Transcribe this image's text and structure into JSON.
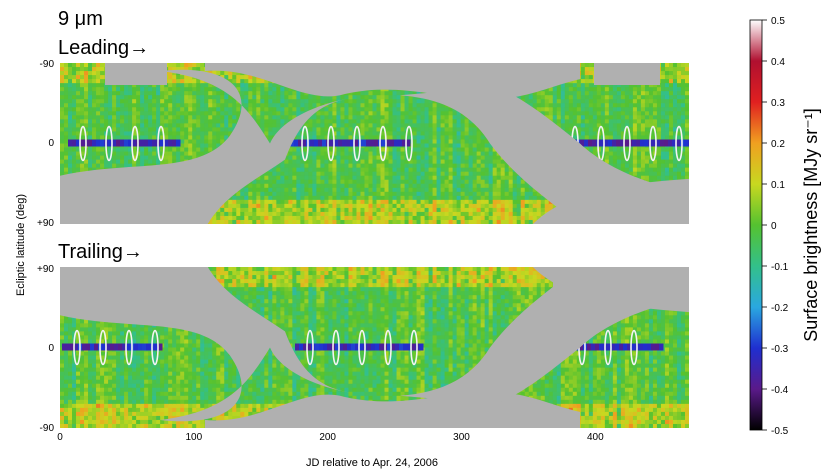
{
  "chart_data": {
    "type": "heatmap",
    "wavelength_label": "9 μm",
    "xlabel": "JD relative to Apr. 24, 2006",
    "ylabel": "Ecliptic latitude (deg)",
    "x_ticks": [
      "0",
      "100",
      "200",
      "300",
      "400"
    ],
    "xlim": [
      0,
      470
    ],
    "colorbar": {
      "label": "Surface brightness [MJy sr⁻¹]",
      "ticks": [
        "0.5",
        "0.4",
        "0.3",
        "0.2",
        "0.1",
        "0",
        "-0.1",
        "-0.2",
        "-0.3",
        "-0.4",
        "-0.5"
      ],
      "range": [
        -0.5,
        0.5
      ],
      "stops": [
        "#000000",
        "#5a1a8a",
        "#1f2fd0",
        "#2aa8e0",
        "#33c08a",
        "#55c230",
        "#c8d820",
        "#f0a020",
        "#e02020",
        "#b01030",
        "#ffffff"
      ]
    },
    "panels": [
      {
        "name": "Leading→",
        "y_ticks": [
          "-90",
          "0",
          "+90"
        ],
        "ylim": [
          -90,
          90
        ]
      },
      {
        "name": "Trailing→",
        "y_ticks": [
          "+90",
          "0",
          "-90"
        ],
        "ylim": [
          90,
          -90
        ]
      }
    ]
  }
}
